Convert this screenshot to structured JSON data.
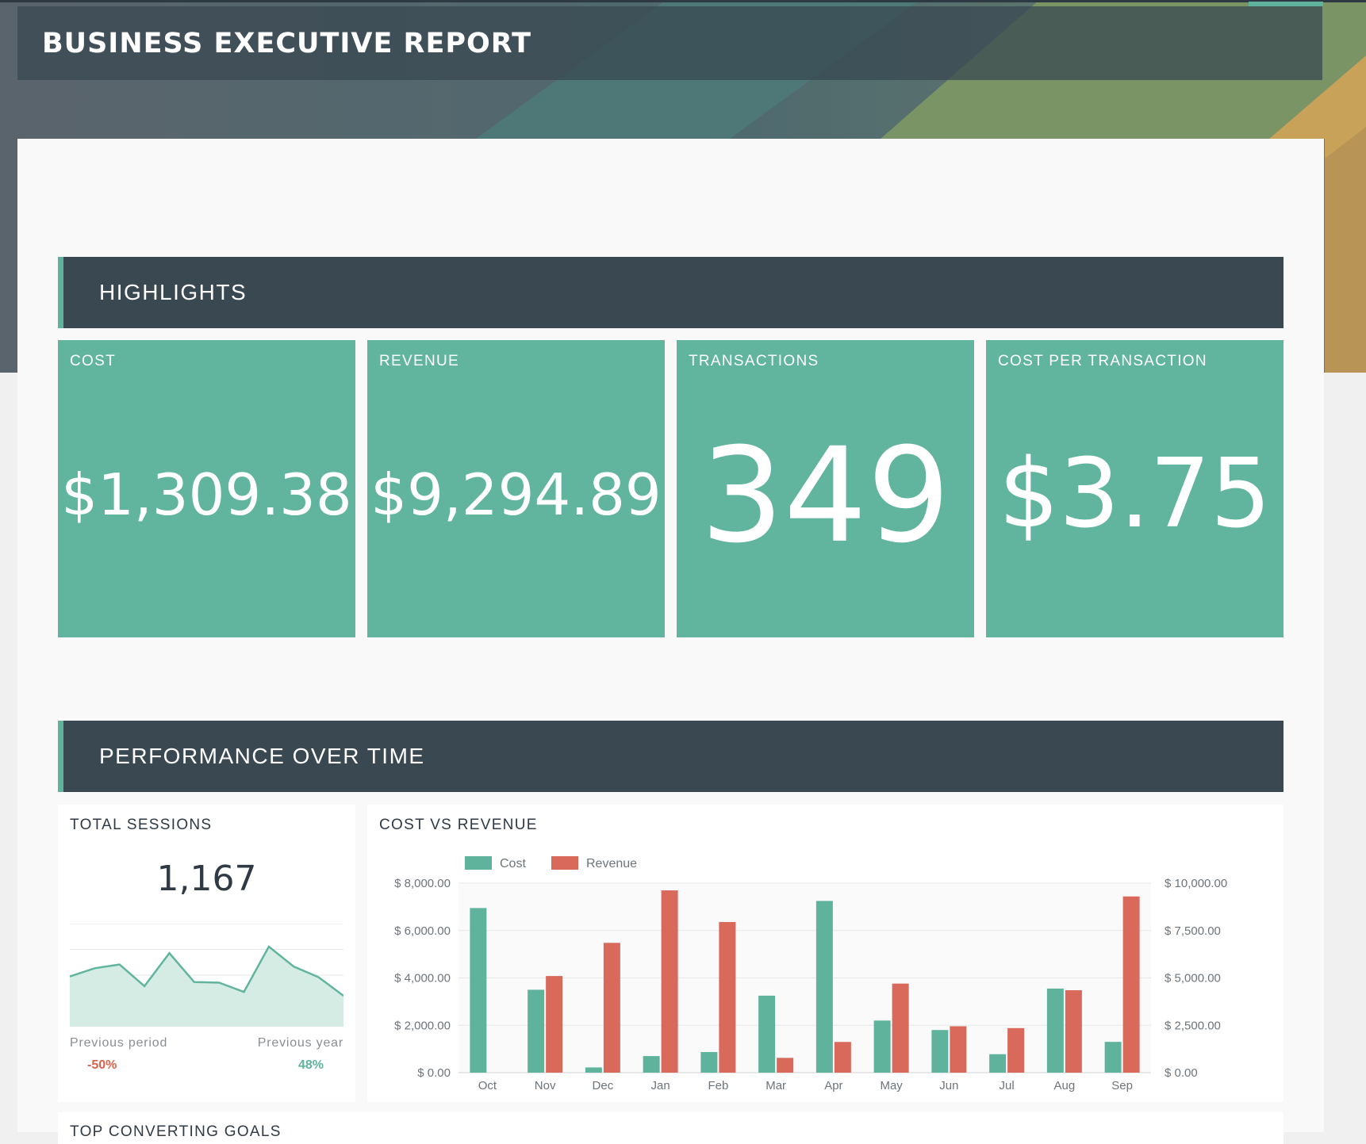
{
  "header": {
    "title": "BUSINESS EXECUTIVE REPORT"
  },
  "sections": {
    "highlights": "HIGHLIGHTS",
    "performance": "PERFORMANCE OVER TIME"
  },
  "kpis": [
    {
      "label": "COST",
      "value": "$1,309.38"
    },
    {
      "label": "REVENUE",
      "value": "$9,294.89"
    },
    {
      "label": "TRANSACTIONS",
      "value": "349"
    },
    {
      "label": "COST PER TRANSACTION",
      "value": "$3.75"
    }
  ],
  "sessions": {
    "label": "TOTAL SESSIONS",
    "value": "1,167",
    "previous_period_label": "Previous period",
    "previous_period_value": "-50%",
    "previous_year_label": "Previous year",
    "previous_year_value": "48%"
  },
  "next_card": {
    "label": "TOP CONVERTING GOALS"
  },
  "colors": {
    "accent": "#61b59e",
    "section_bg": "#3a4852",
    "cost": "#5fb39c",
    "revenue": "#d9695a",
    "negative": "#d9634f",
    "positive": "#5fb39c"
  },
  "chart_data": [
    {
      "type": "area",
      "title": "TOTAL SESSIONS",
      "values": [
        146,
        170,
        181,
        118,
        214,
        130,
        128,
        101,
        233,
        175,
        144,
        90
      ],
      "ylim": [
        0,
        300
      ],
      "grid": true,
      "legend": "none"
    },
    {
      "type": "bar",
      "title": "COST VS REVENUE",
      "categories": [
        "Oct",
        "Nov",
        "Dec",
        "Jan",
        "Feb",
        "Mar",
        "Apr",
        "May",
        "Jun",
        "Jul",
        "Aug",
        "Sep"
      ],
      "series": [
        {
          "name": "Cost",
          "axis": "left",
          "values": [
            6950,
            3500,
            220,
            700,
            870,
            3250,
            7250,
            2200,
            1800,
            780,
            3550,
            1300
          ]
        },
        {
          "name": "Revenue",
          "axis": "right",
          "values": [
            0,
            5100,
            6850,
            9620,
            7950,
            780,
            1620,
            4700,
            2450,
            2350,
            4350,
            9300
          ]
        }
      ],
      "left_axis": {
        "ylim": [
          0,
          8000
        ],
        "ticks": [
          "$ 0.00",
          "$ 2,000.00",
          "$ 4,000.00",
          "$ 6,000.00",
          "$ 8,000.00"
        ]
      },
      "right_axis": {
        "ylim": [
          0,
          10000
        ],
        "ticks": [
          "$ 0.00",
          "$ 2,500.00",
          "$ 5,000.00",
          "$ 7,500.00",
          "$ 10,000.00"
        ]
      },
      "grid": true,
      "legend": "top-left"
    }
  ]
}
